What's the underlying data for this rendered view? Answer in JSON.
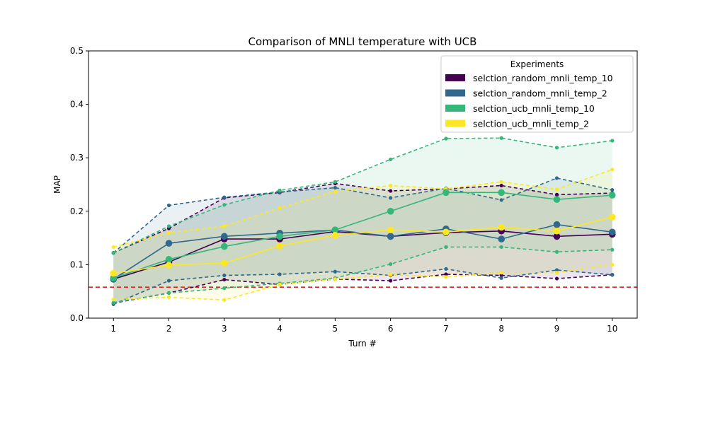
{
  "chart_data": {
    "type": "line",
    "title": "Comparison of MNLI temperature with UCB",
    "xlabel": "Turn #",
    "ylabel": "MAP",
    "x": [
      1,
      2,
      3,
      4,
      5,
      6,
      7,
      8,
      9,
      10
    ],
    "xlim": [
      0.55,
      10.45
    ],
    "ylim": [
      0,
      0.5
    ],
    "yticks": [
      0.0,
      0.1,
      0.2,
      0.3,
      0.4,
      0.5
    ],
    "ytick_labels": [
      "0.0",
      "0.1",
      "0.2",
      "0.3",
      "0.4",
      "0.5"
    ],
    "xtick_labels": [
      "1",
      "2",
      "3",
      "4",
      "5",
      "6",
      "7",
      "8",
      "9",
      "10"
    ],
    "grid": false,
    "legend": {
      "title": "Experiments",
      "placement": "upper right"
    },
    "reference_line": {
      "y": 0.058,
      "color": "#d62728",
      "style": "dashed"
    },
    "series": [
      {
        "name": "selction_random_mnli_temp_10",
        "color": "#440154",
        "mean": [
          0.073,
          0.105,
          0.148,
          0.148,
          0.162,
          0.153,
          0.16,
          0.163,
          0.153,
          0.157
        ],
        "upper": [
          0.122,
          0.168,
          0.225,
          0.235,
          0.252,
          0.238,
          0.242,
          0.248,
          0.231,
          0.234
        ],
        "lower": [
          0.028,
          0.047,
          0.072,
          0.063,
          0.073,
          0.07,
          0.082,
          0.08,
          0.074,
          0.081
        ]
      },
      {
        "name": "selction_random_mnli_temp_2",
        "color": "#31688e",
        "mean": [
          0.073,
          0.14,
          0.153,
          0.159,
          0.165,
          0.153,
          0.167,
          0.148,
          0.175,
          0.161
        ],
        "upper": [
          0.122,
          0.211,
          0.226,
          0.236,
          0.244,
          0.225,
          0.243,
          0.221,
          0.262,
          0.24
        ],
        "lower": [
          0.026,
          0.07,
          0.08,
          0.082,
          0.087,
          0.08,
          0.092,
          0.075,
          0.09,
          0.081
        ]
      },
      {
        "name": "selction_ucb_mnli_temp_10",
        "color": "#35b779",
        "mean": [
          0.075,
          0.11,
          0.134,
          0.153,
          0.165,
          0.2,
          0.235,
          0.235,
          0.222,
          0.23
        ],
        "upper": [
          0.122,
          0.172,
          0.212,
          0.239,
          0.255,
          0.297,
          0.336,
          0.337,
          0.319,
          0.332
        ],
        "lower": [
          0.029,
          0.047,
          0.056,
          0.065,
          0.075,
          0.101,
          0.133,
          0.133,
          0.124,
          0.128
        ]
      },
      {
        "name": "selction_ucb_mnli_temp_2",
        "color": "#fde725",
        "mean": [
          0.084,
          0.099,
          0.103,
          0.135,
          0.155,
          0.165,
          0.161,
          0.17,
          0.163,
          0.189
        ],
        "upper": [
          0.133,
          0.16,
          0.172,
          0.206,
          0.237,
          0.248,
          0.242,
          0.255,
          0.241,
          0.278
        ],
        "lower": [
          0.035,
          0.039,
          0.034,
          0.063,
          0.073,
          0.081,
          0.077,
          0.085,
          0.085,
          0.1
        ]
      }
    ]
  }
}
